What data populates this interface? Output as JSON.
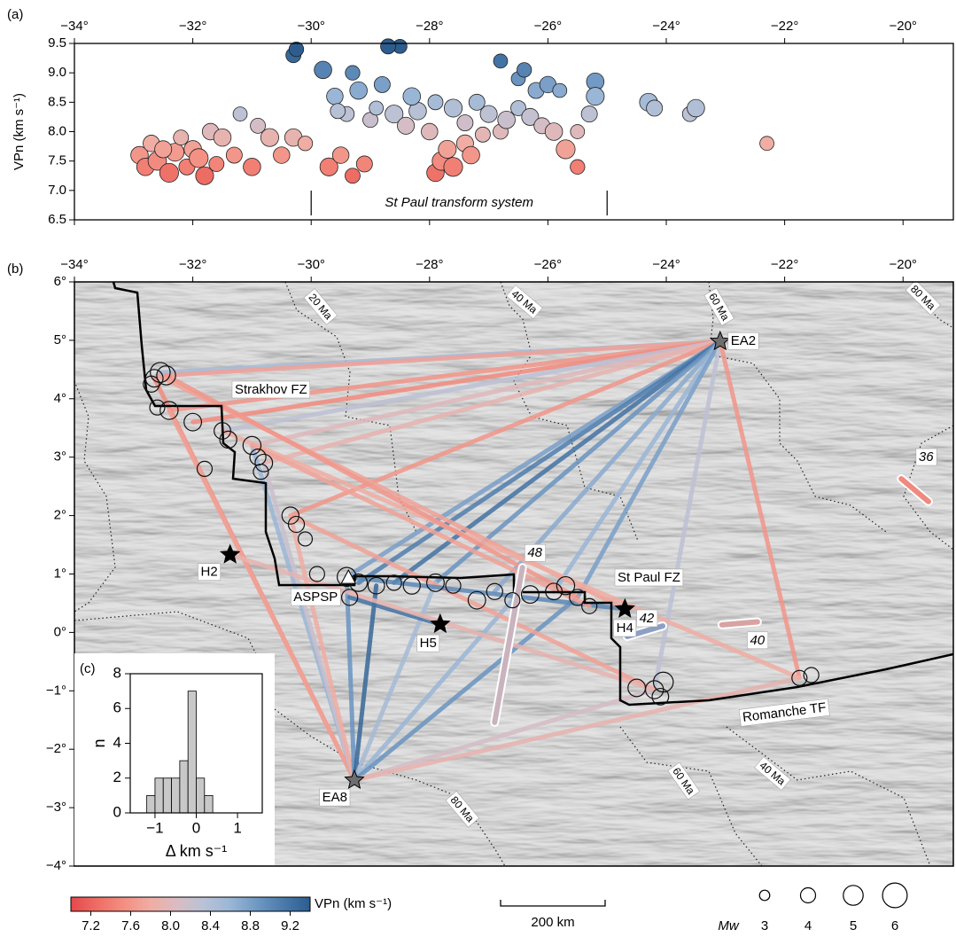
{
  "chart_data": [
    {
      "type": "scatter",
      "panel": "(a)",
      "ylabel": "VPn (km s⁻¹)",
      "xlim": [
        -34,
        -19.15
      ],
      "ylim": [
        6.5,
        9.5
      ],
      "xticks": [
        {
          "value": -34,
          "label": "−34°"
        },
        {
          "value": -32,
          "label": "−32°"
        },
        {
          "value": -30,
          "label": "−30°"
        },
        {
          "value": -28,
          "label": "−28°"
        },
        {
          "value": -26,
          "label": "−26°"
        },
        {
          "value": -24,
          "label": "−24°"
        },
        {
          "value": -22,
          "label": "−22°"
        },
        {
          "value": -20,
          "label": "−20°"
        }
      ],
      "yticks": [
        6.5,
        {
          "value": 7,
          "label": "7.0"
        },
        7.5,
        {
          "value": 8,
          "label": "8.0"
        },
        8.5,
        {
          "value": 9,
          "label": "9.0"
        },
        9.5
      ],
      "x": [
        -32.9,
        -32.8,
        -32.7,
        -32.6,
        -32.4,
        -32.3,
        -32.2,
        -32.1,
        -32.0,
        -31.9,
        -31.7,
        -31.6,
        -31.5,
        -31.3,
        -31.2,
        -31.0,
        -30.9,
        -30.7,
        -30.5,
        -30.3,
        -30.1,
        -31.8,
        -32.5,
        -29.7,
        -29.5,
        -29.3,
        -29.1,
        -29.6,
        -29.4,
        -29.2,
        -29.0,
        -28.8,
        -28.6,
        -28.4,
        -28.2,
        -29.3,
        -29.8,
        -28.9,
        -30.3,
        -30.25,
        -29.55,
        -28.5,
        -28.7,
        -28.0,
        -28.3,
        -27.9,
        -27.8,
        -27.7,
        -27.6,
        -27.4,
        -27.3,
        -27.1,
        -27.6,
        -27.4,
        -27.2,
        -27.0,
        -26.8,
        -26.7,
        -26.5,
        -26.3,
        -26.1,
        -25.9,
        -25.7,
        -25.5,
        -25.5,
        -25.3,
        -27.9,
        -26.8,
        -26.5,
        -26.4,
        -26.2,
        -26.0,
        -25.8,
        -25.2,
        -25.2,
        -24.3,
        -24.2,
        -23.6,
        -23.5,
        -22.3
      ],
      "y": [
        7.6,
        7.4,
        7.8,
        7.5,
        7.3,
        7.65,
        7.9,
        7.4,
        7.7,
        7.55,
        8.0,
        7.45,
        7.9,
        7.6,
        8.3,
        7.4,
        8.1,
        7.9,
        7.6,
        7.9,
        7.8,
        7.25,
        7.7,
        7.4,
        7.6,
        7.25,
        7.45,
        8.6,
        8.3,
        8.7,
        8.2,
        8.8,
        8.3,
        8.1,
        8.35,
        9.0,
        9.05,
        8.4,
        9.3,
        9.4,
        8.35,
        9.45,
        9.45,
        8.0,
        8.6,
        7.3,
        7.5,
        7.7,
        7.4,
        7.8,
        7.6,
        7.95,
        8.4,
        8.15,
        8.5,
        8.3,
        8.0,
        8.2,
        8.4,
        8.25,
        8.1,
        8.0,
        7.7,
        7.4,
        8.0,
        8.3,
        8.5,
        9.2,
        8.9,
        9.05,
        8.7,
        8.8,
        8.7,
        8.85,
        8.6,
        8.5,
        8.4,
        8.3,
        8.4,
        7.8
      ],
      "mw": [
        4.5,
        4.5,
        4.3,
        4.7,
        4.8,
        4.6,
        4.0,
        4.2,
        4.5,
        4.8,
        4.3,
        4.0,
        4.5,
        4.2,
        3.8,
        4.5,
        4.0,
        4.6,
        4.3,
        4.5,
        3.9,
        4.6,
        4.4,
        4.6,
        4.3,
        4.0,
        4.2,
        4.3,
        4.0,
        4.5,
        4.0,
        4.2,
        4.6,
        4.4,
        4.5,
        3.9,
        4.5,
        3.8,
        4.0,
        3.9,
        4.0,
        3.8,
        4.0,
        4.3,
        4.5,
        4.5,
        4.7,
        4.6,
        4.8,
        4.4,
        4.5,
        4.0,
        4.6,
        4.2,
        4.2,
        4.4,
        4.0,
        4.5,
        4.0,
        4.4,
        4.2,
        4.5,
        4.8,
        3.9,
        3.8,
        4.2,
        4.0,
        3.8,
        3.8,
        3.9,
        4.2,
        4.3,
        3.8,
        4.5,
        4.6,
        4.6,
        4.2,
        4.0,
        4.5,
        3.8
      ],
      "annotation": "St Paul transform system",
      "annotation_span": [
        -30,
        -25
      ]
    },
    {
      "type": "map",
      "panel": "(b)",
      "xlim": [
        -34,
        -19.15
      ],
      "ylim": [
        -4,
        6
      ],
      "xticks": [
        {
          "value": -34,
          "label": "−34°"
        },
        {
          "value": -32,
          "label": "−32°"
        },
        {
          "value": -30,
          "label": "−30°"
        },
        {
          "value": -28,
          "label": "−28°"
        },
        {
          "value": -26,
          "label": "−26°"
        },
        {
          "value": -24,
          "label": "−24°"
        },
        {
          "value": -22,
          "label": "−22°"
        },
        {
          "value": -20,
          "label": "−20°"
        }
      ],
      "yticks": [
        {
          "value": 6,
          "label": "6°"
        },
        {
          "value": 5,
          "label": "5°"
        },
        {
          "value": 4,
          "label": "4°"
        },
        {
          "value": 3,
          "label": "3°"
        },
        {
          "value": 2,
          "label": "2°"
        },
        {
          "value": 1,
          "label": "1°"
        },
        {
          "value": 0,
          "label": "0°"
        },
        {
          "value": -1,
          "label": "−1°"
        },
        {
          "value": -2,
          "label": "−2°"
        },
        {
          "value": -3,
          "label": "−3°"
        },
        {
          "value": -4,
          "label": "−4°"
        }
      ],
      "rays": [
        {
          "lon": [
            -32.6,
            -23.09
          ],
          "lat": [
            4.4,
            4.98
          ],
          "value": 8.3
        },
        {
          "lon": [
            -32.55,
            -23.09
          ],
          "lat": [
            4.45,
            4.98
          ],
          "value": 8.5
        },
        {
          "lon": [
            -32.45,
            -23.09
          ],
          "lat": [
            4.4,
            4.98
          ],
          "value": 7.7
        },
        {
          "lon": [
            -32.4,
            -23.09
          ],
          "lat": [
            3.8,
            4.98
          ],
          "value": 7.6
        },
        {
          "lon": [
            -32.0,
            -23.09
          ],
          "lat": [
            3.6,
            4.98
          ],
          "value": 7.5
        },
        {
          "lon": [
            -31.5,
            -23.09
          ],
          "lat": [
            3.45,
            4.98
          ],
          "value": 8.3
        },
        {
          "lon": [
            -31.0,
            -23.09
          ],
          "lat": [
            3.2,
            4.98
          ],
          "value": 8.0
        },
        {
          "lon": [
            -30.8,
            -23.09
          ],
          "lat": [
            2.9,
            4.98
          ],
          "value": 7.9
        },
        {
          "lon": [
            -30.35,
            -23.09
          ],
          "lat": [
            2.0,
            4.98
          ],
          "value": 7.6
        },
        {
          "lon": [
            -29.4,
            -23.09
          ],
          "lat": [
            0.95,
            4.98
          ],
          "value": 8.8
        },
        {
          "lon": [
            -29.2,
            -23.09
          ],
          "lat": [
            0.85,
            4.98
          ],
          "value": 9.1
        },
        {
          "lon": [
            -28.6,
            -23.09
          ],
          "lat": [
            0.85,
            4.98
          ],
          "value": 9.2
        },
        {
          "lon": [
            -27.9,
            -23.09
          ],
          "lat": [
            0.85,
            4.98
          ],
          "value": 8.9
        },
        {
          "lon": [
            -26.9,
            -23.09
          ],
          "lat": [
            0.7,
            4.98
          ],
          "value": 8.7
        },
        {
          "lon": [
            -25.9,
            -23.09
          ],
          "lat": [
            0.7,
            4.98
          ],
          "value": 8.6
        },
        {
          "lon": [
            -25.5,
            -23.09
          ],
          "lat": [
            0.6,
            4.98
          ],
          "value": 8.8
        },
        {
          "lon": [
            -24.2,
            -23.09
          ],
          "lat": [
            -0.98,
            4.98
          ],
          "value": 8.3
        },
        {
          "lon": [
            -21.75,
            -23.09
          ],
          "lat": [
            -0.78,
            4.98
          ],
          "value": 7.6
        },
        {
          "lon": [
            -32.65,
            -29.27
          ],
          "lat": [
            4.35,
            -2.53
          ],
          "value": 7.5
        },
        {
          "lon": [
            -32.4,
            -29.27
          ],
          "lat": [
            3.8,
            -2.53
          ],
          "value": 7.7
        },
        {
          "lon": [
            -31.0,
            -29.27
          ],
          "lat": [
            3.2,
            -2.53
          ],
          "value": 8.6
        },
        {
          "lon": [
            -30.8,
            -29.27
          ],
          "lat": [
            2.9,
            -2.53
          ],
          "value": 8.2
        },
        {
          "lon": [
            -30.35,
            -29.27
          ],
          "lat": [
            2.0,
            -2.53
          ],
          "value": 7.8
        },
        {
          "lon": [
            -29.4,
            -29.27
          ],
          "lat": [
            0.95,
            -2.53
          ],
          "value": 8.9
        },
        {
          "lon": [
            -28.9,
            -29.27
          ],
          "lat": [
            0.8,
            -2.53
          ],
          "value": 9.3
        },
        {
          "lon": [
            -27.9,
            -29.27
          ],
          "lat": [
            0.85,
            -2.53
          ],
          "value": 8.5
        },
        {
          "lon": [
            -26.6,
            -29.27
          ],
          "lat": [
            0.55,
            -2.53
          ],
          "value": 8.6
        },
        {
          "lon": [
            -25.5,
            -29.27
          ],
          "lat": [
            0.6,
            -2.53
          ],
          "value": 8.9
        },
        {
          "lon": [
            -24.2,
            -29.27
          ],
          "lat": [
            -0.98,
            -2.53
          ],
          "value": 8.1
        },
        {
          "lon": [
            -21.75,
            -29.27
          ],
          "lat": [
            -0.78,
            -2.53
          ],
          "value": 7.9
        },
        {
          "lon": [
            -32.6,
            -24.7
          ],
          "lat": [
            4.4,
            0.4
          ],
          "value": 7.7
        },
        {
          "lon": [
            -31.5,
            -21.75
          ],
          "lat": [
            3.45,
            -0.78
          ],
          "value": 7.8
        },
        {
          "lon": [
            -30.35,
            -24.2
          ],
          "lat": [
            2.0,
            -0.98
          ],
          "value": 7.7
        },
        {
          "lon": [
            -29.4,
            -24.7
          ],
          "lat": [
            0.95,
            0.4
          ],
          "value": 9.0
        },
        {
          "lon": [
            -29.35,
            -27.82
          ],
          "lat": [
            0.6,
            0.14
          ],
          "value": 9.2
        },
        {
          "lon": [
            -31.37,
            -24.2
          ],
          "lat": [
            1.33,
            -0.98
          ],
          "value": 7.9
        },
        {
          "lon": [
            -32.45,
            -25.5
          ],
          "lat": [
            4.4,
            0.6
          ],
          "value": 7.6
        },
        {
          "lon": [
            -31.0,
            -25.3
          ],
          "lat": [
            3.2,
            0.45
          ],
          "value": 7.7
        }
      ],
      "events": {
        "lon": [
          -32.65,
          -32.55,
          -32.45,
          -32.7,
          -32.6,
          -32.4,
          -32.0,
          -31.5,
          -31.4,
          -31.0,
          -30.9,
          -30.8,
          -30.85,
          -31.8,
          -30.35,
          -30.25,
          -30.1,
          -29.9,
          -29.4,
          -29.2,
          -29.35,
          -28.9,
          -28.6,
          -28.3,
          -27.9,
          -27.6,
          -27.2,
          -26.9,
          -26.6,
          -26.3,
          -25.9,
          -25.7,
          -25.5,
          -25.3,
          -24.5,
          -24.2,
          -24.05,
          -24.1,
          -21.75,
          -21.55
        ],
        "lat": [
          4.35,
          4.45,
          4.4,
          4.25,
          3.85,
          3.8,
          3.6,
          3.45,
          3.3,
          3.2,
          3.0,
          2.9,
          2.75,
          2.8,
          2.0,
          1.85,
          1.6,
          1.0,
          0.95,
          0.85,
          0.6,
          0.8,
          0.85,
          0.8,
          0.85,
          0.8,
          0.55,
          0.7,
          0.55,
          0.65,
          0.7,
          0.8,
          0.6,
          0.45,
          -0.95,
          -0.98,
          -0.85,
          -1.1,
          -0.78,
          -0.73
        ],
        "mw": [
          4.5,
          5.0,
          4.8,
          4.2,
          4.0,
          4.6,
          4.5,
          4.3,
          4.4,
          4.6,
          4.2,
          4.5,
          4.0,
          4.0,
          4.4,
          4.2,
          3.8,
          4.0,
          4.8,
          4.5,
          4.2,
          4.3,
          4.0,
          4.4,
          4.5,
          4.0,
          4.5,
          4.2,
          4.0,
          4.5,
          4.3,
          4.6,
          4.2,
          4.0,
          4.5,
          4.6,
          5.0,
          4.3,
          4.0,
          4.0
        ]
      },
      "stations": [
        {
          "name": "EA2",
          "lon": -23.09,
          "lat": 4.98,
          "marker": "star",
          "color": "#6e6e6e"
        },
        {
          "name": "EA8",
          "lon": -29.27,
          "lat": -2.53,
          "marker": "star",
          "color": "#6e6e6e"
        },
        {
          "name": "ASPSP",
          "lon": -29.37,
          "lat": 0.93,
          "marker": "triangle",
          "color": "#ffffff"
        },
        {
          "name": "H2",
          "lon": -31.37,
          "lat": 1.33,
          "marker": "star",
          "color": "#000000"
        },
        {
          "name": "H5",
          "lon": -27.82,
          "lat": 0.14,
          "marker": "star",
          "color": "#000000"
        },
        {
          "name": "H4",
          "lon": -24.7,
          "lat": 0.4,
          "marker": "star",
          "color": "#000000"
        }
      ],
      "fast_axes": [
        {
          "label": 48,
          "lon": [
            -26.43,
            -26.9
          ],
          "lat": [
            1.11,
            -1.54
          ],
          "color": "#c9b3bd"
        },
        {
          "label": 42,
          "lon": [
            -24.66,
            -24.06
          ],
          "lat": [
            -0.07,
            0.11
          ],
          "color": "#8d9fc4"
        },
        {
          "label": 40,
          "lon": [
            -23.06,
            -22.46
          ],
          "lat": [
            0.13,
            0.18
          ],
          "color": "#d8a3a3"
        },
        {
          "label": 36,
          "lon": [
            -20.03,
            -19.57
          ],
          "lat": [
            2.63,
            2.24
          ],
          "color": "#ef8a80"
        }
      ],
      "feature_labels": [
        "Strakhov FZ",
        "St Paul FZ",
        "Romanche TF"
      ],
      "isochron_labels": [
        "20 Ma",
        "40 Ma",
        "60 Ma",
        "80 Ma",
        "40 Ma",
        "60 Ma",
        "80 Ma"
      ]
    },
    {
      "type": "histogram",
      "panel": "(c)",
      "xlabel": "Δ km s⁻¹",
      "ylabel": "n",
      "bins": [
        -1.2,
        -1.0,
        -0.8,
        -0.6,
        -0.4,
        -0.2,
        0,
        0.2,
        0.4
      ],
      "counts": [
        1,
        2,
        2,
        2,
        3,
        7,
        2,
        1
      ],
      "color": "#c8c8c8",
      "xlim": [
        -1.6,
        1.6
      ],
      "ylim": [
        0,
        8
      ],
      "xticks": [
        {
          "value": -1,
          "label": "−1"
        },
        0,
        1
      ],
      "yticks": [
        0,
        2,
        4,
        6,
        8
      ]
    }
  ],
  "colorbar": {
    "label": "VPn (km s⁻¹)",
    "lim": [
      7.0,
      9.4
    ],
    "ticks": [
      7.2,
      7.6,
      {
        "value": 8,
        "label": "8.0"
      },
      8.4,
      8.8,
      9.2
    ],
    "colors": [
      "#e5484d",
      "#ee6e66",
      "#f38f82",
      "#f0ada3",
      "#d9bcc3",
      "#b9c2d6",
      "#9ab6d6",
      "#6f98c3",
      "#4a7aab",
      "#2d5d8e"
    ]
  },
  "size_legend": {
    "label": "Mw",
    "values": [
      3,
      4,
      5,
      6
    ]
  },
  "scale_bar": {
    "label": "200 km"
  }
}
